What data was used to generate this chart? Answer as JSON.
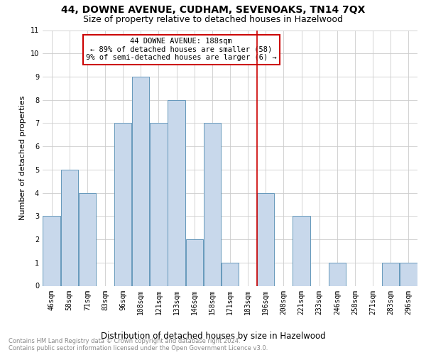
{
  "title": "44, DOWNE AVENUE, CUDHAM, SEVENOAKS, TN14 7QX",
  "subtitle": "Size of property relative to detached houses in Hazelwood",
  "xlabel": "Distribution of detached houses by size in Hazelwood",
  "ylabel": "Number of detached properties",
  "categories": [
    "46sqm",
    "58sqm",
    "71sqm",
    "83sqm",
    "96sqm",
    "108sqm",
    "121sqm",
    "133sqm",
    "146sqm",
    "158sqm",
    "171sqm",
    "183sqm",
    "196sqm",
    "208sqm",
    "221sqm",
    "233sqm",
    "246sqm",
    "258sqm",
    "271sqm",
    "283sqm",
    "296sqm"
  ],
  "values": [
    3,
    5,
    4,
    0,
    7,
    9,
    7,
    8,
    2,
    7,
    1,
    0,
    4,
    0,
    3,
    0,
    1,
    0,
    0,
    1,
    1
  ],
  "bar_color_fill": "#c8d8eb",
  "bar_edge_color": "#6699bb",
  "ref_line_index": 12,
  "annotation_title": "44 DOWNE AVENUE: 188sqm",
  "annotation_line1": "← 89% of detached houses are smaller (58)",
  "annotation_line2": "9% of semi-detached houses are larger (6) →",
  "ylim": [
    0,
    11
  ],
  "yticks": [
    0,
    1,
    2,
    3,
    4,
    5,
    6,
    7,
    8,
    9,
    10,
    11
  ],
  "title_fontsize": 10,
  "subtitle_fontsize": 9,
  "ylabel_fontsize": 8,
  "tick_fontsize": 7,
  "annotation_fontsize": 7.5,
  "xlabel_fontsize": 8.5,
  "footnote": "Contains HM Land Registry data © Crown copyright and database right 2024.\nContains public sector information licensed under the Open Government Licence v3.0.",
  "footnote_fontsize": 6,
  "grid_color": "#cccccc",
  "ref_line_color": "#cc0000",
  "annotation_box_edge_color": "#cc0000"
}
